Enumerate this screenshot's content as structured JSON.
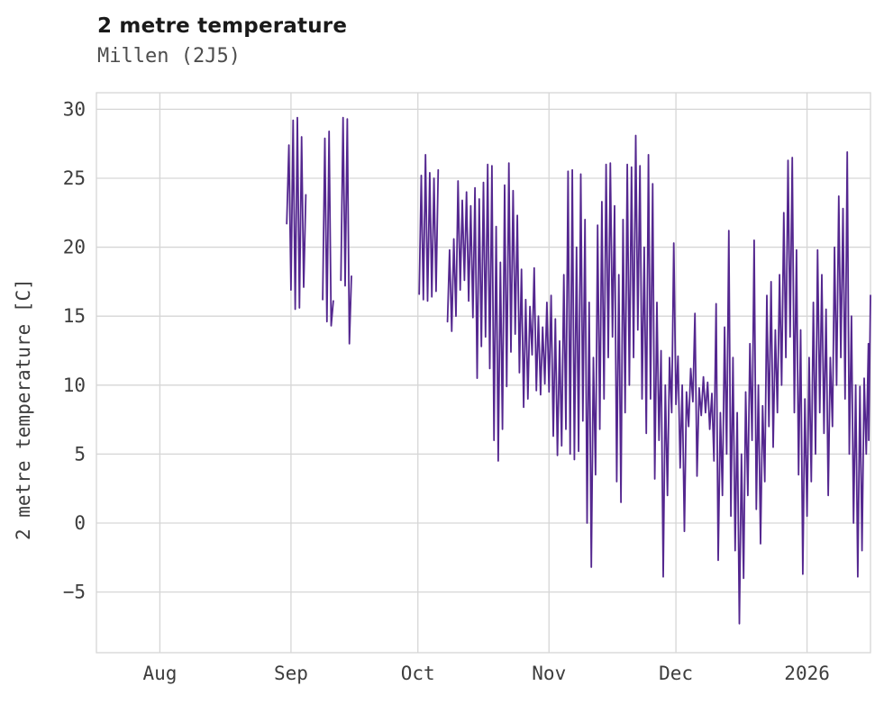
{
  "chart_data": {
    "type": "line",
    "title": "2 metre temperature",
    "subtitle": "Millen (2J5)",
    "xlabel": "",
    "ylabel": "2 metre temperature [C]",
    "legend": null,
    "grid": true,
    "line_color": "#54278f",
    "grid_color": "#d6d6d6",
    "tick_text_color": "#3d3d3d",
    "ylim": [
      -9.4,
      31.2
    ],
    "xlim_days": [
      0,
      183
    ],
    "y_ticks": [
      30,
      25,
      20,
      15,
      10,
      5,
      0,
      -5
    ],
    "x_ticks": [
      {
        "label": "Aug",
        "day": 15
      },
      {
        "label": "Sep",
        "day": 46
      },
      {
        "label": "Oct",
        "day": 76
      },
      {
        "label": "Nov",
        "day": 107
      },
      {
        "label": "Dec",
        "day": 137
      },
      {
        "label": "2026",
        "day": 168
      }
    ],
    "format_note": "series points are daily triplets [day, daily_min_C, daily_max_C]; day 0 = left axis edge (mid-July 2025), Aug 1 = day 15, Sep 1 = 46, Oct 1 = 76, Nov 1 = 107, Dec 1 = 137, Jan 1 2026 = 168. Gaps between segments are periods with no data.",
    "series": [
      {
        "name": "2 metre temperature",
        "segments": [
          [
            [
              45,
              21.7,
              27.4
            ],
            [
              46,
              16.9,
              29.2
            ],
            [
              47,
              15.5,
              29.4
            ],
            [
              48,
              15.6,
              28.0
            ],
            [
              49,
              17.1,
              23.8
            ]
          ],
          [
            [
              53.5,
              16.2,
              27.9
            ],
            [
              54.5,
              14.6,
              28.4
            ],
            [
              55.5,
              14.3,
              16.1
            ]
          ],
          [
            [
              57.8,
              17.6,
              29.4
            ],
            [
              58.8,
              17.2,
              29.3
            ],
            [
              59.8,
              13.0,
              17.9
            ]
          ],
          [
            [
              76.3,
              16.6,
              25.2
            ],
            [
              77.3,
              16.2,
              26.7
            ],
            [
              78.3,
              16.1,
              25.4
            ],
            [
              79.3,
              16.4,
              25.0
            ],
            [
              80.3,
              16.8,
              25.6
            ]
          ],
          [
            [
              83,
              14.6,
              19.8
            ],
            [
              84,
              13.9,
              20.6
            ],
            [
              85,
              15.0,
              24.8
            ],
            [
              86,
              16.9,
              23.4
            ],
            [
              87,
              17.6,
              24.0
            ],
            [
              88,
              16.1,
              23.0
            ],
            [
              89,
              14.9,
              24.3
            ],
            [
              90,
              10.5,
              23.5
            ],
            [
              91,
              12.8,
              24.7
            ],
            [
              92,
              13.5,
              26.0
            ],
            [
              93,
              11.2,
              25.9
            ],
            [
              94,
              6.0,
              21.5
            ],
            [
              95,
              4.5,
              18.9
            ],
            [
              96,
              6.8,
              24.5
            ],
            [
              97,
              9.9,
              26.1
            ],
            [
              98,
              12.4,
              24.1
            ],
            [
              99,
              13.7,
              22.3
            ],
            [
              100,
              10.9,
              18.4
            ],
            [
              101,
              8.4,
              16.2
            ],
            [
              102,
              9.0,
              15.7
            ],
            [
              103,
              12.2,
              18.5
            ],
            [
              104,
              9.6,
              15.0
            ],
            [
              105,
              9.3,
              14.2
            ],
            [
              106,
              10.1,
              16.0
            ],
            [
              107,
              9.5,
              16.5
            ],
            [
              108,
              6.3,
              14.8
            ],
            [
              109,
              4.9,
              13.2
            ],
            [
              110,
              5.6,
              18.0
            ],
            [
              111,
              6.8,
              25.5
            ],
            [
              112,
              5.0,
              25.6
            ],
            [
              113,
              4.6,
              20.0
            ],
            [
              114,
              5.2,
              25.3
            ],
            [
              115,
              7.4,
              22.0
            ],
            [
              116,
              0.0,
              16.0
            ],
            [
              117,
              -3.2,
              12.0
            ],
            [
              118,
              3.5,
              21.6
            ],
            [
              119,
              6.8,
              23.3
            ],
            [
              120,
              9.0,
              26.0
            ],
            [
              121,
              12.0,
              26.1
            ],
            [
              122,
              13.5,
              23.0
            ],
            [
              123,
              3.0,
              18.0
            ],
            [
              124,
              1.5,
              22.0
            ],
            [
              125,
              8.0,
              26.0
            ],
            [
              126,
              10.0,
              25.8
            ],
            [
              127,
              12.0,
              28.1
            ],
            [
              128,
              14.0,
              25.9
            ],
            [
              129,
              9.0,
              20.0
            ],
            [
              130,
              6.5,
              26.7
            ],
            [
              131,
              9.0,
              24.6
            ],
            [
              132,
              3.2,
              16.0
            ],
            [
              133,
              6.0,
              12.5
            ],
            [
              134,
              -3.9,
              10.0
            ],
            [
              135,
              2.0,
              12.0
            ],
            [
              136,
              8.0,
              20.3
            ],
            [
              137,
              8.6,
              12.1
            ],
            [
              138,
              4.0,
              10.0
            ],
            [
              139,
              -0.6,
              9.5
            ],
            [
              140,
              7.0,
              11.2
            ],
            [
              141,
              8.8,
              15.2
            ],
            [
              142,
              3.4,
              9.8
            ],
            [
              143,
              7.8,
              10.6
            ],
            [
              144,
              8.0,
              10.2
            ],
            [
              145,
              6.8,
              9.4
            ],
            [
              146,
              4.5,
              15.9
            ],
            [
              147,
              -2.7,
              8.0
            ],
            [
              148,
              2.0,
              14.2
            ],
            [
              149,
              5.0,
              21.2
            ],
            [
              150,
              0.5,
              12.0
            ],
            [
              151,
              -2.0,
              8.0
            ],
            [
              152,
              -7.3,
              5.0
            ],
            [
              153,
              -4.0,
              9.5
            ],
            [
              154,
              2.0,
              13.0
            ],
            [
              155,
              6.0,
              20.5
            ],
            [
              156,
              1.0,
              10.0
            ],
            [
              157,
              -1.5,
              8.5
            ],
            [
              158,
              3.0,
              16.5
            ],
            [
              159,
              7.0,
              17.5
            ],
            [
              160,
              5.5,
              14.0
            ],
            [
              161,
              8.0,
              18.0
            ],
            [
              162,
              10.0,
              22.5
            ],
            [
              163,
              12.0,
              26.3
            ],
            [
              164,
              13.5,
              26.5
            ],
            [
              165,
              8.0,
              19.8
            ],
            [
              166,
              3.5,
              14.0
            ],
            [
              167,
              -3.7,
              9.0
            ],
            [
              168,
              0.5,
              12.0
            ],
            [
              169,
              3.0,
              16.0
            ],
            [
              170,
              5.0,
              19.8
            ],
            [
              171,
              8.0,
              18.0
            ],
            [
              172,
              6.5,
              15.5
            ],
            [
              173,
              2.0,
              12.0
            ],
            [
              174,
              7.0,
              20.0
            ],
            [
              175,
              10.0,
              23.7
            ],
            [
              176,
              12.0,
              22.8
            ],
            [
              177,
              9.0,
              26.9
            ],
            [
              178,
              5.0,
              15.0
            ],
            [
              179,
              0.0,
              10.0
            ],
            [
              180,
              -3.9,
              9.9
            ],
            [
              181,
              -2.0,
              10.5
            ],
            [
              182,
              5.0,
              13.0
            ],
            [
              182.6,
              6.0,
              16.5
            ]
          ]
        ]
      }
    ]
  }
}
